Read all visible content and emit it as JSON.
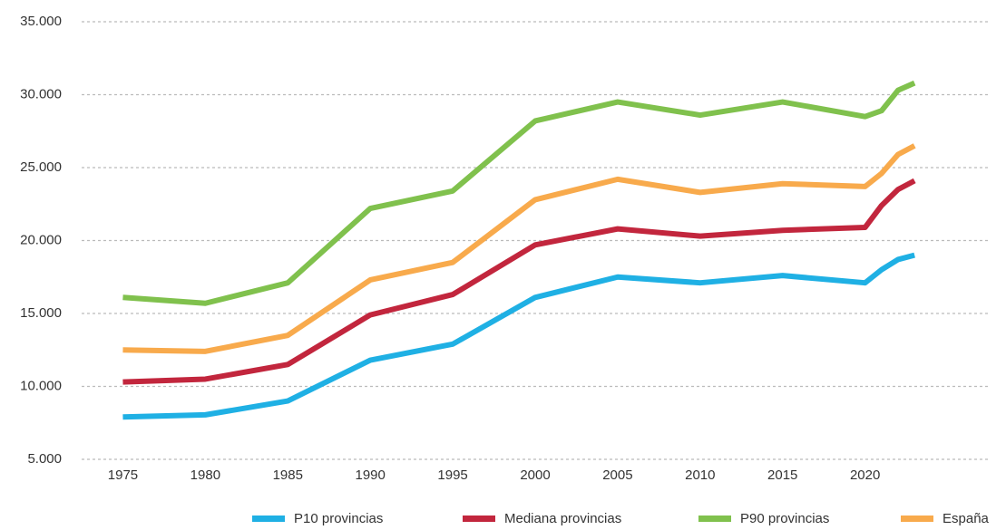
{
  "chart_data": {
    "type": "line",
    "x": [
      1975,
      1980,
      1985,
      1990,
      1995,
      2000,
      2005,
      2010,
      2015,
      2020,
      2021,
      2022,
      2023
    ],
    "series": [
      {
        "name": "P10 provincias",
        "color": "#1fb0e4",
        "values": [
          7900,
          8050,
          9000,
          11800,
          12900,
          16100,
          17500,
          17100,
          17600,
          17100,
          18000,
          18700,
          19000
        ]
      },
      {
        "name": "Mediana provincias",
        "color": "#c2263d",
        "values": [
          10300,
          10500,
          11500,
          14900,
          16300,
          19700,
          20800,
          20300,
          20700,
          20900,
          22400,
          23500,
          24100
        ]
      },
      {
        "name": "P90 provincias",
        "color": "#80c14d",
        "values": [
          16100,
          15700,
          17100,
          22200,
          23400,
          28200,
          29500,
          28600,
          29500,
          28500,
          28900,
          30300,
          30800
        ]
      },
      {
        "name": "España",
        "color": "#f8aa4c",
        "values": [
          12500,
          12400,
          13500,
          17300,
          18500,
          22800,
          24200,
          23300,
          23900,
          23700,
          24600,
          25900,
          26500
        ]
      }
    ],
    "xlim": [
      1972.5,
      2027.5
    ],
    "xticks": [
      1975,
      1980,
      1985,
      1990,
      1995,
      2000,
      2005,
      2010,
      2015,
      2020
    ],
    "ylim": [
      5000,
      35000
    ],
    "yticks": [
      {
        "value": 5000,
        "label": "5.000"
      },
      {
        "value": 10000,
        "label": "10.000"
      },
      {
        "value": 15000,
        "label": "15.000"
      },
      {
        "value": 20000,
        "label": "20.000"
      },
      {
        "value": 25000,
        "label": "25.000"
      },
      {
        "value": 30000,
        "label": "30.000"
      },
      {
        "value": 35000,
        "label": "35.000"
      }
    ],
    "grid": true,
    "legend": "bottom"
  }
}
